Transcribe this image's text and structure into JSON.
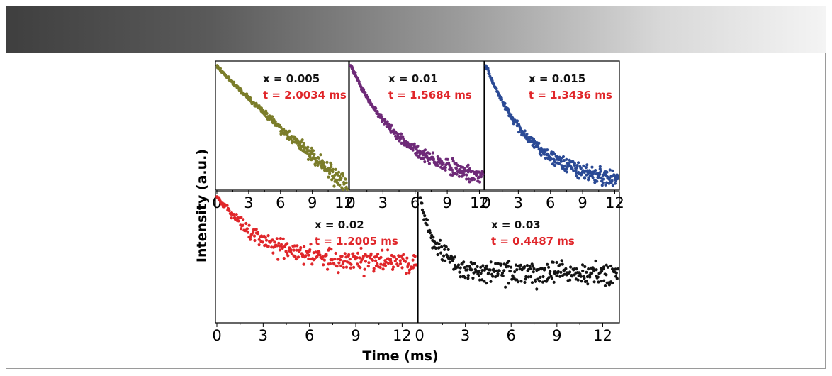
{
  "figure": {
    "ylabel": "Intensity (a.u.)",
    "xlabel": "Time (ms)"
  },
  "chart_data": [
    {
      "type": "scatter",
      "label_x": "x = 0.005",
      "label_t": "t = 2.0034 ms",
      "lifetime_ms": 2.0034,
      "color": "#7b7d2a",
      "xlim": [
        0,
        12.3
      ],
      "xticks": [
        0,
        3,
        6,
        9,
        12
      ],
      "xticklabels": [
        "0",
        "3",
        "6",
        "9",
        "12"
      ]
    },
    {
      "type": "scatter",
      "label_x": "x = 0.01",
      "label_t": "t = 1.5684 ms",
      "lifetime_ms": 1.5684,
      "color": "#6e2a78",
      "xlim": [
        0,
        12.3
      ],
      "xticks": [
        0,
        3,
        6,
        9,
        12
      ],
      "xticklabels": [
        "0",
        "3",
        "6",
        "9",
        "12"
      ]
    },
    {
      "type": "scatter",
      "label_x": "x = 0.015",
      "label_t": "t = 1.3436 ms",
      "lifetime_ms": 1.3436,
      "color": "#2b4a95",
      "xlim": [
        0,
        12.3
      ],
      "xticks": [
        0,
        3,
        6,
        9,
        12
      ],
      "xticklabels": [
        "0",
        "3",
        "6",
        "9",
        "12"
      ]
    },
    {
      "type": "scatter",
      "label_x": "x = 0.02",
      "label_t": "t = 1.2005 ms",
      "lifetime_ms": 1.2005,
      "color": "#e0262a",
      "xlim": [
        0,
        12.9
      ],
      "xticks": [
        0,
        3,
        6,
        9,
        12
      ],
      "xticklabels": [
        "0",
        "3",
        "6",
        "9",
        "12"
      ]
    },
    {
      "type": "scatter",
      "label_x": "x = 0.03",
      "label_t": "t = 0.4487 ms",
      "lifetime_ms": 0.4487,
      "color": "#141414",
      "xlim": [
        0,
        13
      ],
      "xticks": [
        0,
        3,
        6,
        9,
        12
      ],
      "xticklabels": [
        "0",
        "3",
        "6",
        "9",
        "12"
      ]
    }
  ],
  "colors": {
    "label_red": "#e0262a",
    "label_black": "#111111",
    "axis": "#000000"
  }
}
